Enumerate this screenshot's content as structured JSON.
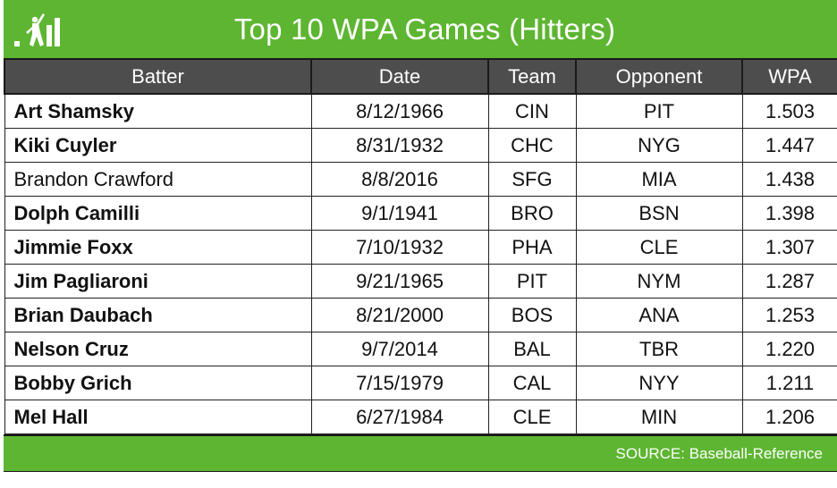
{
  "title": "Top 10 WPA Games (Hitters)",
  "logo_icon": "baseball-batter-bar-chart-icon",
  "colors": {
    "brand_green": "#5db531",
    "header_gray": "#4d4d4d"
  },
  "columns": [
    "Batter",
    "Date",
    "Team",
    "Opponent",
    "WPA"
  ],
  "rows": [
    {
      "batter": "Art Shamsky",
      "date": "8/12/1966",
      "team": "CIN",
      "opponent": "PIT",
      "wpa": "1.503",
      "bold": true
    },
    {
      "batter": "Kiki Cuyler",
      "date": "8/31/1932",
      "team": "CHC",
      "opponent": "NYG",
      "wpa": "1.447",
      "bold": true
    },
    {
      "batter": "Brandon Crawford",
      "date": "8/8/2016",
      "team": "SFG",
      "opponent": "MIA",
      "wpa": "1.438",
      "bold": false
    },
    {
      "batter": "Dolph Camilli",
      "date": "9/1/1941",
      "team": "BRO",
      "opponent": "BSN",
      "wpa": "1.398",
      "bold": true
    },
    {
      "batter": "Jimmie Foxx",
      "date": "7/10/1932",
      "team": "PHA",
      "opponent": "CLE",
      "wpa": "1.307",
      "bold": true
    },
    {
      "batter": "Jim Pagliaroni",
      "date": "9/21/1965",
      "team": "PIT",
      "opponent": "NYM",
      "wpa": "1.287",
      "bold": true
    },
    {
      "batter": "Brian Daubach",
      "date": "8/21/2000",
      "team": "BOS",
      "opponent": "ANA",
      "wpa": "1.253",
      "bold": true
    },
    {
      "batter": "Nelson Cruz",
      "date": "9/7/2014",
      "team": "BAL",
      "opponent": "TBR",
      "wpa": "1.220",
      "bold": true
    },
    {
      "batter": "Bobby Grich",
      "date": "7/15/1979",
      "team": "CAL",
      "opponent": "NYY",
      "wpa": "1.211",
      "bold": true
    },
    {
      "batter": "Mel Hall",
      "date": "6/27/1984",
      "team": "CLE",
      "opponent": "MIN",
      "wpa": "1.206",
      "bold": true
    }
  ],
  "source": "SOURCE: Baseball-Reference"
}
